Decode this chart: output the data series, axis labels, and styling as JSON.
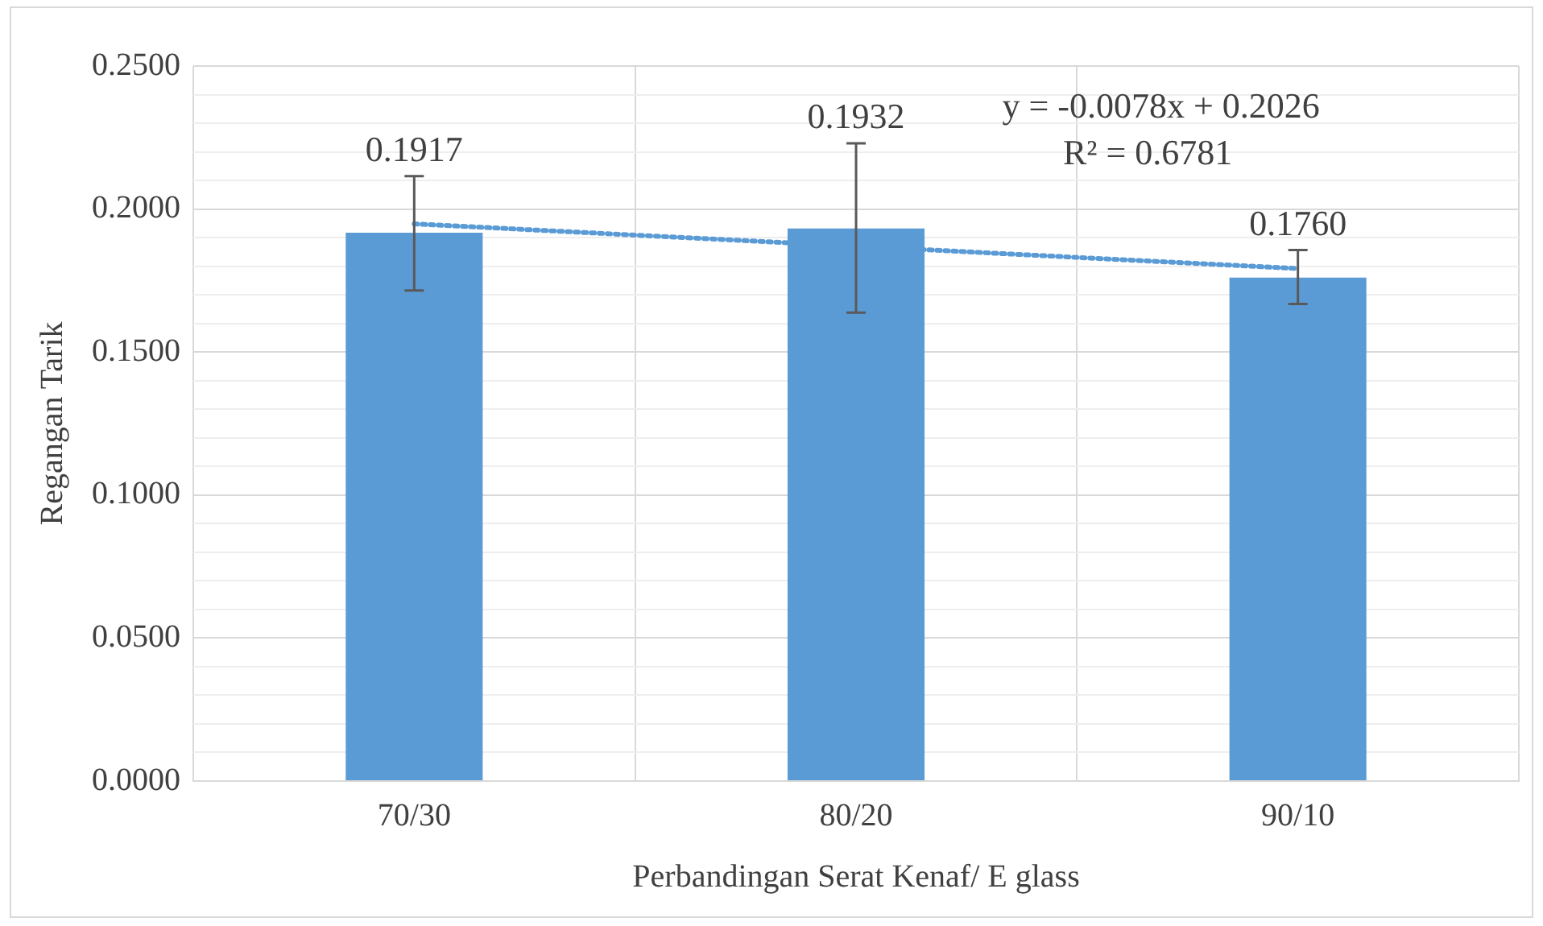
{
  "chart_data": {
    "type": "bar",
    "xlabel": "Perbandingan Serat Kenaf/ E glass",
    "ylabel": "Regangan Tarik",
    "categories": [
      "70/30",
      "80/20",
      "90/10"
    ],
    "series": [
      {
        "color": "#5b9bd5",
        "values": [
          0.1917,
          0.1932,
          0.176
        ],
        "errors": [
          [
            0.1715,
            0.2115
          ],
          [
            0.1638,
            0.223
          ],
          [
            0.1668,
            0.1857
          ]
        ],
        "value_labels": [
          "0.1917",
          "0.1932",
          "0.1760"
        ]
      },
      {
        "type": "line",
        "color": "#5b9bd5",
        "x": [
          "70/30",
          "90/10"
        ],
        "values": [
          0.1948,
          0.1792
        ],
        "line_style": "dotted",
        "marker": "none"
      }
    ],
    "ylim": [
      0,
      0.25
    ],
    "yticks": [
      {
        "value": 0,
        "label": "0.0000"
      },
      {
        "value": 0.01,
        "label": null
      },
      {
        "value": 0.02,
        "label": null
      },
      {
        "value": 0.03,
        "label": null
      },
      {
        "value": 0.04,
        "label": null
      },
      {
        "value": 0.05,
        "label": "0.0500"
      },
      {
        "value": 0.06,
        "label": null
      },
      {
        "value": 0.07,
        "label": null
      },
      {
        "value": 0.08,
        "label": null
      },
      {
        "value": 0.09,
        "label": null
      },
      {
        "value": 0.1,
        "label": "0.1000"
      },
      {
        "value": 0.11,
        "label": null
      },
      {
        "value": 0.12,
        "label": null
      },
      {
        "value": 0.13,
        "label": null
      },
      {
        "value": 0.14,
        "label": null
      },
      {
        "value": 0.15,
        "label": "0.1500"
      },
      {
        "value": 0.16,
        "label": null
      },
      {
        "value": 0.17,
        "label": null
      },
      {
        "value": 0.18,
        "label": null
      },
      {
        "value": 0.19,
        "label": null
      },
      {
        "value": 0.2,
        "label": "0.2000"
      },
      {
        "value": 0.21,
        "label": null
      },
      {
        "value": 0.22,
        "label": null
      },
      {
        "value": 0.23,
        "label": null
      },
      {
        "value": 0.24,
        "label": null
      },
      {
        "value": 0.25,
        "label": "0.2500"
      }
    ],
    "annotations": [
      "y = -0.0078x + 0.2026",
      "R² = 0.6781"
    ],
    "grid": true,
    "legend": false
  }
}
